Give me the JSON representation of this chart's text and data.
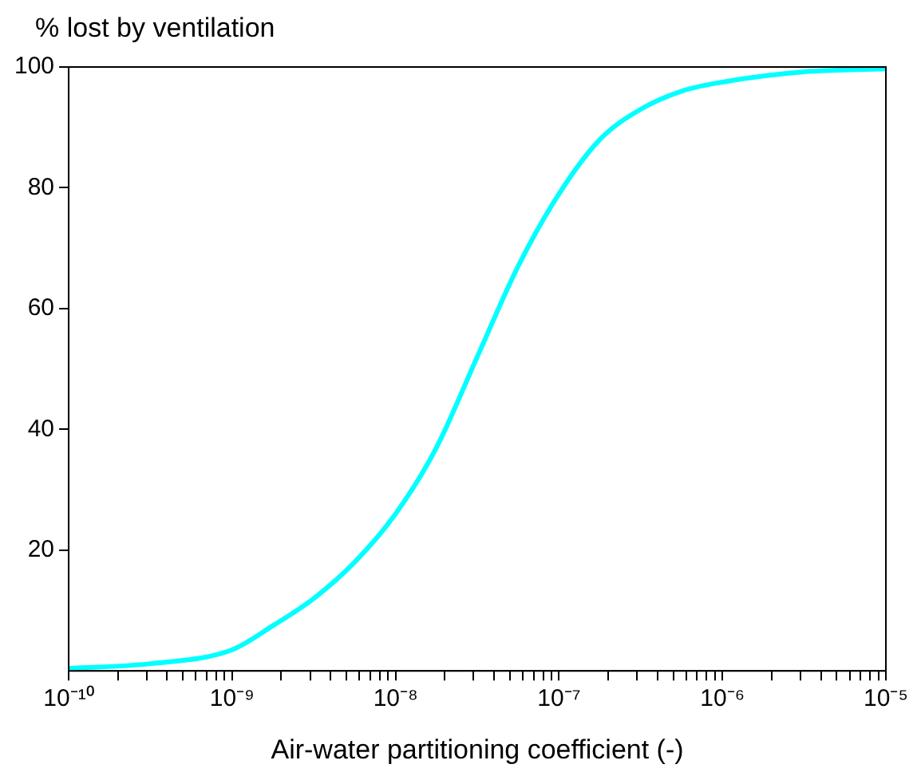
{
  "chart_data": {
    "type": "line",
    "ylabel": "% lost by ventilation",
    "xlabel": "Air-water partitioning coefficient (-)",
    "log": "x",
    "grid": false,
    "legend": false,
    "marker": "none",
    "line_style": "solid",
    "x": [
      1e-10,
      3.16e-10,
      1e-09,
      1.78e-09,
      3.16e-09,
      5.62e-09,
      1e-08,
      1.78e-08,
      3.16e-08,
      5.62e-08,
      1e-07,
      1.78e-07,
      3.16e-07,
      5.62e-07,
      1e-06,
      3.16e-06,
      1e-05
    ],
    "series": [
      {
        "color": "#00ffff",
        "values": [
          0.4,
          1.2,
          3.5,
          7.5,
          12,
          18,
          26,
          37,
          52,
          67,
          79,
          88,
          93,
          96,
          97.5,
          99.2,
          99.7
        ]
      }
    ],
    "xlim": [
      1e-10,
      1e-05
    ],
    "xticks": [
      {
        "value": 1e-10,
        "label": "10⁻¹⁰"
      },
      {
        "value": 2e-10,
        "label": null
      },
      {
        "value": 3e-10,
        "label": null
      },
      {
        "value": 4e-10,
        "label": null
      },
      {
        "value": 5e-10,
        "label": null
      },
      {
        "value": 6e-10,
        "label": null
      },
      {
        "value": 7e-10,
        "label": null
      },
      {
        "value": 8e-10,
        "label": null
      },
      {
        "value": 9e-10,
        "label": null
      },
      {
        "value": 1e-09,
        "label": "10⁻⁹"
      },
      {
        "value": 2e-09,
        "label": null
      },
      {
        "value": 3e-09,
        "label": null
      },
      {
        "value": 4e-09,
        "label": null
      },
      {
        "value": 5e-09,
        "label": null
      },
      {
        "value": 6e-09,
        "label": null
      },
      {
        "value": 7e-09,
        "label": null
      },
      {
        "value": 8e-09,
        "label": null
      },
      {
        "value": 9e-09,
        "label": null
      },
      {
        "value": 1e-08,
        "label": "10⁻⁸"
      },
      {
        "value": 2e-08,
        "label": null
      },
      {
        "value": 3e-08,
        "label": null
      },
      {
        "value": 4e-08,
        "label": null
      },
      {
        "value": 5e-08,
        "label": null
      },
      {
        "value": 6e-08,
        "label": null
      },
      {
        "value": 7e-08,
        "label": null
      },
      {
        "value": 8e-08,
        "label": null
      },
      {
        "value": 9e-08,
        "label": null
      },
      {
        "value": 1e-07,
        "label": "10⁻⁷"
      },
      {
        "value": 2e-07,
        "label": null
      },
      {
        "value": 3e-07,
        "label": null
      },
      {
        "value": 4e-07,
        "label": null
      },
      {
        "value": 5e-07,
        "label": null
      },
      {
        "value": 6e-07,
        "label": null
      },
      {
        "value": 7e-07,
        "label": null
      },
      {
        "value": 8e-07,
        "label": null
      },
      {
        "value": 9e-07,
        "label": null
      },
      {
        "value": 1e-06,
        "label": "10⁻⁶"
      },
      {
        "value": 2e-06,
        "label": null
      },
      {
        "value": 3e-06,
        "label": null
      },
      {
        "value": 4e-06,
        "label": null
      },
      {
        "value": 5e-06,
        "label": null
      },
      {
        "value": 6e-06,
        "label": null
      },
      {
        "value": 7e-06,
        "label": null
      },
      {
        "value": 8e-06,
        "label": null
      },
      {
        "value": 9e-06,
        "label": null
      },
      {
        "value": 1e-05,
        "label": "10⁻⁵"
      }
    ],
    "ylim": [
      0,
      100
    ],
    "yticks": [
      20,
      40,
      60,
      80,
      100
    ]
  }
}
